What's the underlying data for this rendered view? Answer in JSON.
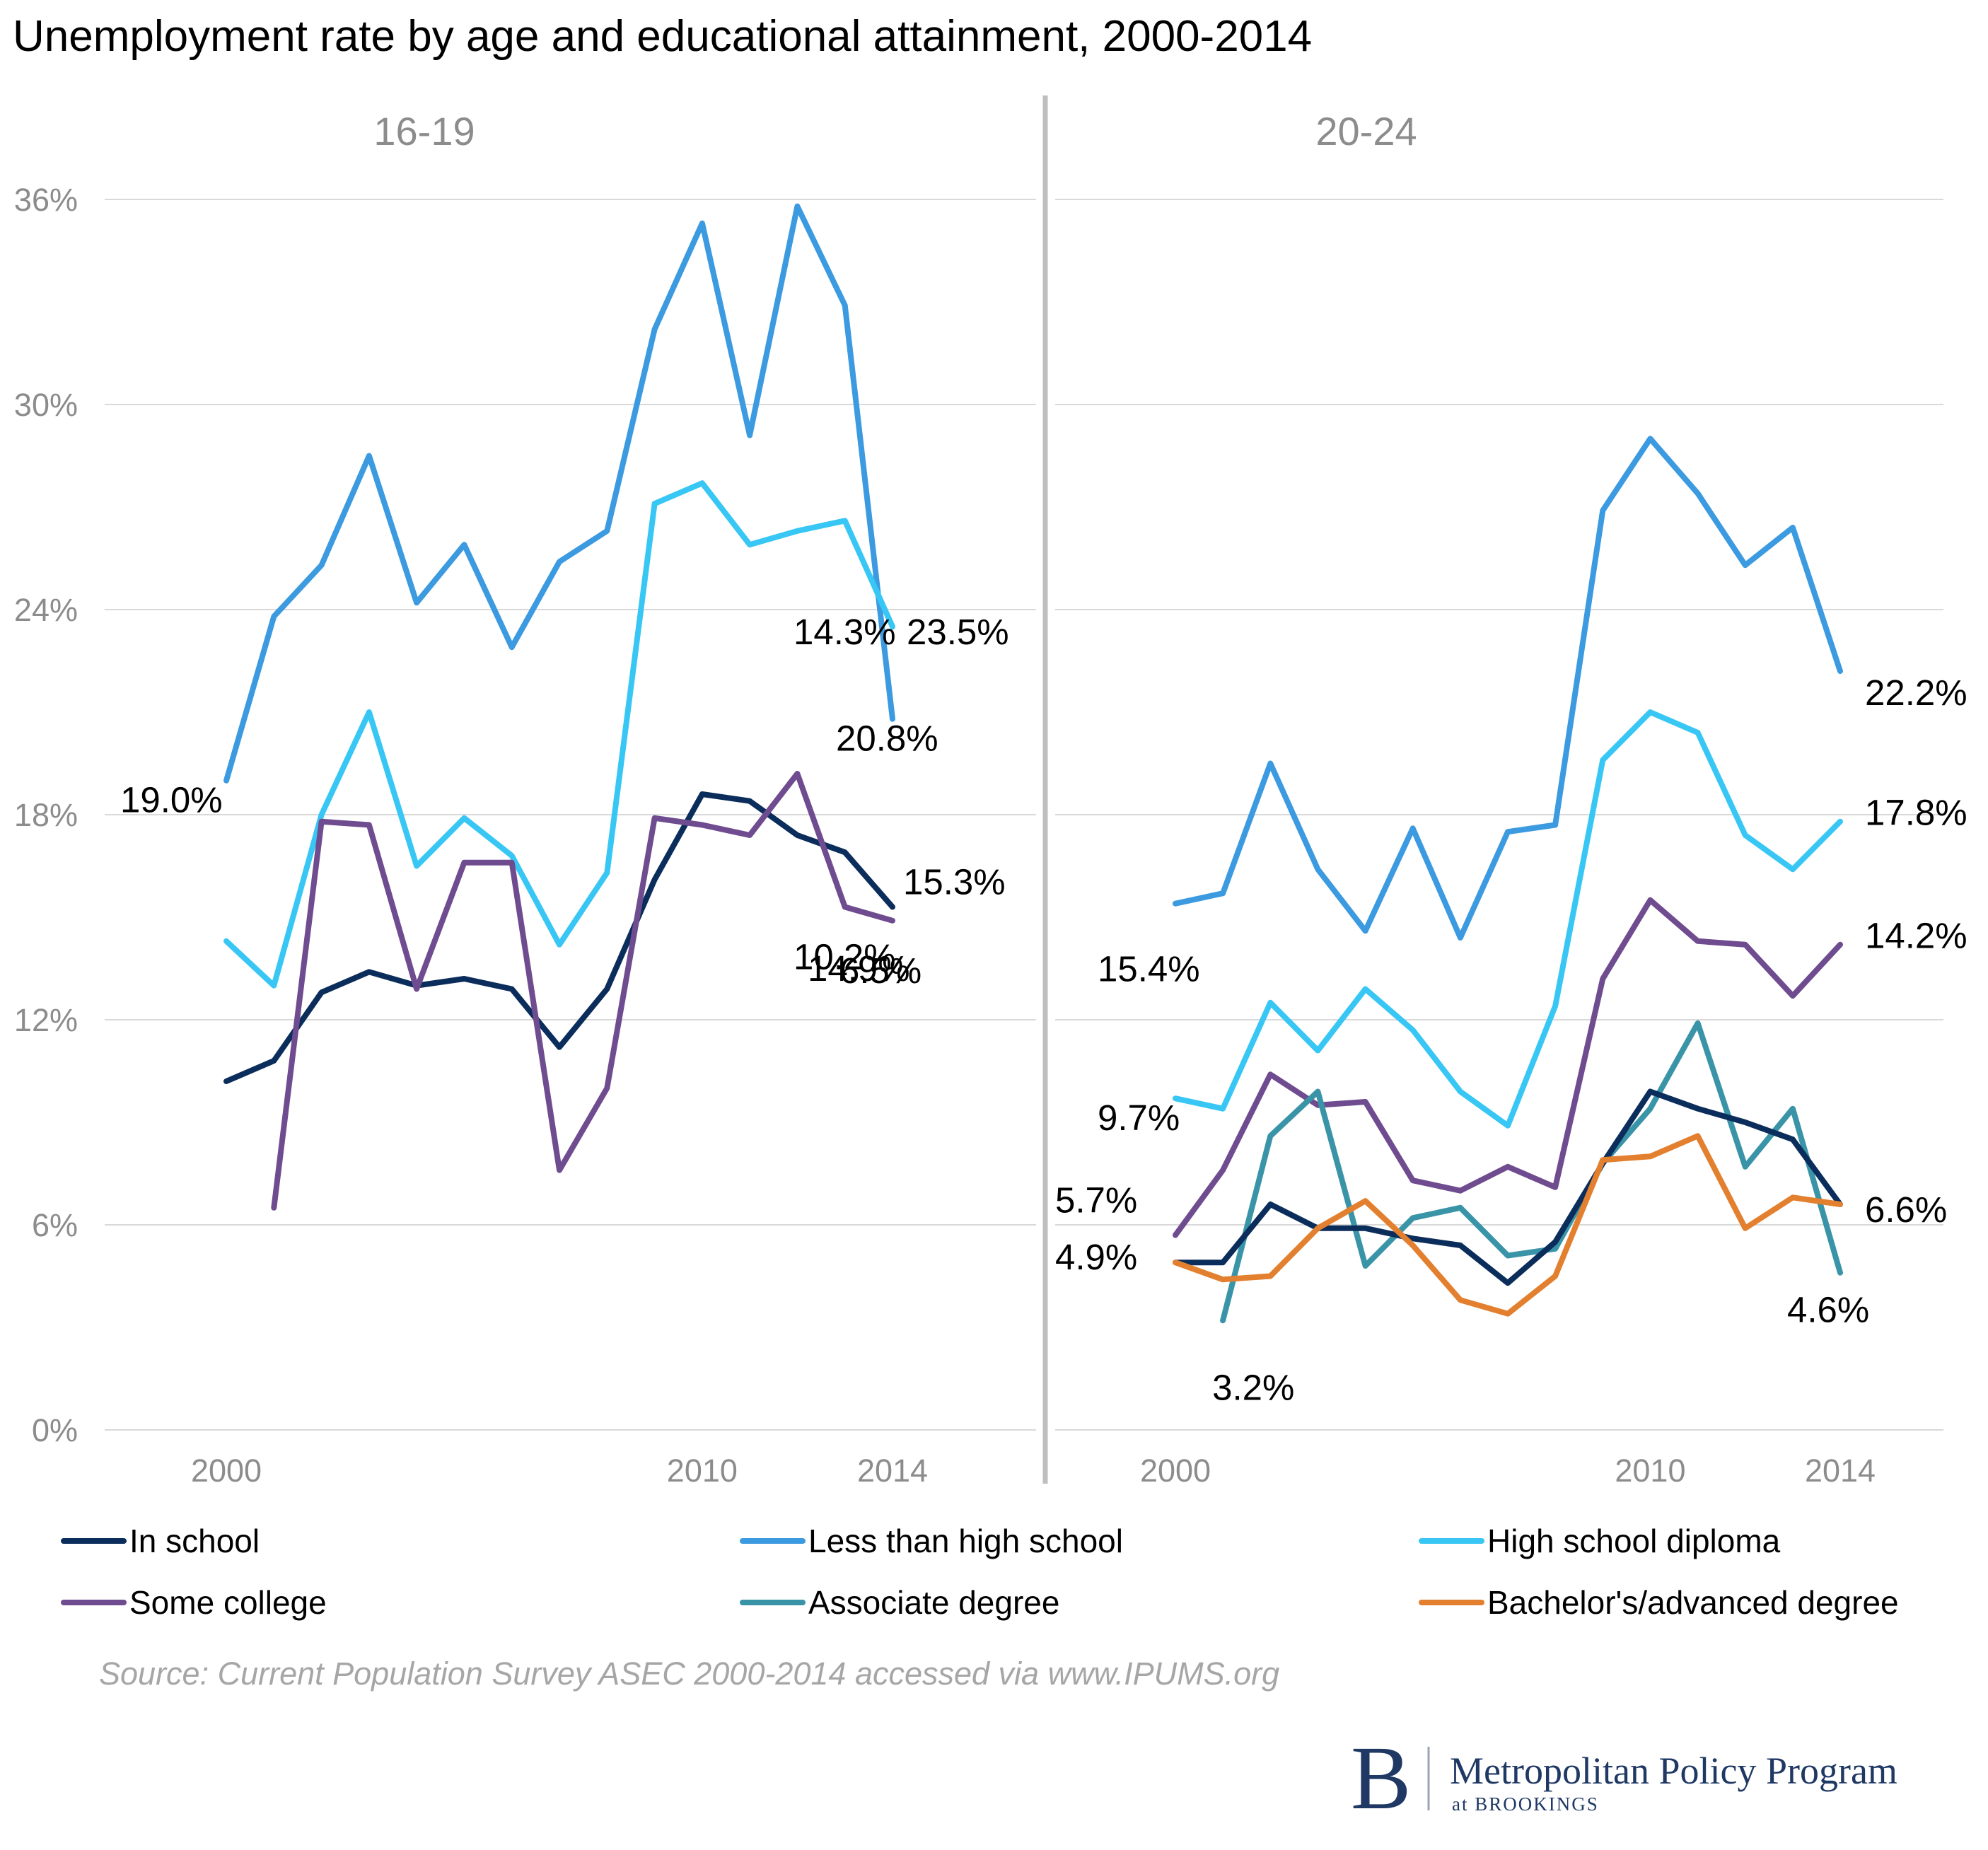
{
  "title": "Unemployment rate by age and educational attainment, 2000-2014",
  "source": "Source: Current Population Survey ASEC 2000-2014 accessed via www.IPUMS.org",
  "logo": {
    "letter": "B",
    "name": "Metropolitan Policy Program",
    "sub": "at BROOKINGS"
  },
  "chart_data": {
    "type": "line",
    "ylim": [
      0,
      36
    ],
    "yticks": [
      "0%",
      "6%",
      "12%",
      "18%",
      "24%",
      "30%",
      "36%"
    ],
    "xticks": [
      "2000",
      "2010",
      "2014"
    ],
    "panels": [
      {
        "title": "16-19",
        "series": [
          {
            "name": "Less than high school",
            "x": [
              2000,
              2001,
              2002,
              2003,
              2004,
              2005,
              2006,
              2007,
              2008,
              2009,
              2010,
              2011,
              2012,
              2013,
              2014
            ],
            "values": [
              19.0,
              23.8,
              25.3,
              28.5,
              24.2,
              25.9,
              22.9,
              25.4,
              26.3,
              32.2,
              35.3,
              29.1,
              35.8,
              32.9,
              20.8
            ]
          },
          {
            "name": "High school diploma",
            "x": [
              2000,
              2001,
              2002,
              2003,
              2004,
              2005,
              2006,
              2007,
              2008,
              2009,
              2010,
              2011,
              2012,
              2013,
              2014
            ],
            "values": [
              14.3,
              13.0,
              18.0,
              21.0,
              16.5,
              17.9,
              16.8,
              14.2,
              16.3,
              27.1,
              27.7,
              25.9,
              26.3,
              26.6,
              23.5
            ]
          },
          {
            "name": "In school",
            "x": [
              2000,
              2001,
              2002,
              2003,
              2004,
              2005,
              2006,
              2007,
              2008,
              2009,
              2010,
              2011,
              2012,
              2013,
              2014
            ],
            "values": [
              10.2,
              10.8,
              12.8,
              13.4,
              13.0,
              13.2,
              12.9,
              11.2,
              12.9,
              16.1,
              18.6,
              18.4,
              17.4,
              16.9,
              15.3
            ]
          },
          {
            "name": "Some college",
            "x": [
              2001,
              2002,
              2003,
              2004,
              2005,
              2006,
              2007,
              2008,
              2009,
              2010,
              2011,
              2012,
              2013,
              2014
            ],
            "values": [
              6.5,
              17.8,
              17.7,
              12.9,
              16.6,
              16.6,
              7.6,
              10.0,
              17.9,
              17.7,
              17.4,
              19.2,
              15.3,
              14.9
            ]
          }
        ],
        "labels": [
          {
            "text": "19.0%",
            "series": "Less than high school"
          },
          {
            "text": "20.8%",
            "series": "Less than high school"
          },
          {
            "text": "23.5%",
            "series": "High school diploma"
          },
          {
            "text": "14.3%",
            "series": "High school diploma"
          },
          {
            "text": "15.3%",
            "series": "In school"
          },
          {
            "text": "10.2%",
            "series": "In school"
          },
          {
            "text": "14.9%",
            "series": "Some college"
          },
          {
            "text": "6.5%",
            "series": "Some college"
          }
        ]
      },
      {
        "title": "20-24",
        "series": [
          {
            "name": "Less than high school",
            "x": [
              2000,
              2001,
              2002,
              2003,
              2004,
              2005,
              2006,
              2007,
              2008,
              2009,
              2010,
              2011,
              2012,
              2013,
              2014
            ],
            "values": [
              15.4,
              15.7,
              19.5,
              16.4,
              14.6,
              17.6,
              14.4,
              17.5,
              17.7,
              26.9,
              29.0,
              27.4,
              25.3,
              26.4,
              22.2
            ]
          },
          {
            "name": "High school diploma",
            "x": [
              2000,
              2001,
              2002,
              2003,
              2004,
              2005,
              2006,
              2007,
              2008,
              2009,
              2010,
              2011,
              2012,
              2013,
              2014
            ],
            "values": [
              9.7,
              9.4,
              12.5,
              11.1,
              12.9,
              11.7,
              9.9,
              8.9,
              12.4,
              19.6,
              21.0,
              20.4,
              17.4,
              16.4,
              17.8
            ]
          },
          {
            "name": "Some college",
            "x": [
              2000,
              2001,
              2002,
              2003,
              2004,
              2005,
              2006,
              2007,
              2008,
              2009,
              2010,
              2011,
              2012,
              2013,
              2014
            ],
            "values": [
              5.7,
              7.6,
              10.4,
              9.5,
              9.6,
              7.3,
              7.0,
              7.7,
              7.1,
              13.2,
              15.5,
              14.3,
              14.2,
              12.7,
              14.2
            ]
          },
          {
            "name": "Associate degree",
            "x": [
              2001,
              2002,
              2003,
              2004,
              2005,
              2006,
              2007,
              2008,
              2009,
              2010,
              2011,
              2012,
              2013,
              2014
            ],
            "values": [
              3.2,
              8.6,
              9.9,
              4.8,
              6.2,
              6.5,
              5.1,
              5.3,
              7.8,
              9.4,
              11.9,
              7.7,
              9.4,
              4.6
            ]
          },
          {
            "name": "In school",
            "x": [
              2000,
              2001,
              2002,
              2003,
              2004,
              2005,
              2006,
              2007,
              2008,
              2009,
              2010,
              2011,
              2012,
              2013,
              2014
            ],
            "values": [
              4.9,
              4.9,
              6.6,
              5.9,
              5.9,
              5.6,
              5.4,
              4.3,
              5.5,
              7.8,
              9.9,
              9.4,
              9.0,
              8.5,
              6.6
            ]
          },
          {
            "name": "Bachelor's/advanced degree",
            "x": [
              2000,
              2001,
              2002,
              2003,
              2004,
              2005,
              2006,
              2007,
              2008,
              2009,
              2010,
              2011,
              2012,
              2013,
              2014
            ],
            "values": [
              4.9,
              4.4,
              4.5,
              5.9,
              6.7,
              5.4,
              3.8,
              3.4,
              4.5,
              7.9,
              8.0,
              8.6,
              5.9,
              6.8,
              6.6
            ]
          }
        ],
        "labels": [
          {
            "text": "15.4%",
            "series": "Less than high school"
          },
          {
            "text": "22.2%",
            "series": "Less than high school"
          },
          {
            "text": "9.7%",
            "series": "High school diploma"
          },
          {
            "text": "17.8%",
            "series": "High school diploma"
          },
          {
            "text": "5.7%",
            "series": "Some college"
          },
          {
            "text": "14.2%",
            "series": "Some college"
          },
          {
            "text": "4.9%",
            "series": "In school"
          },
          {
            "text": "6.6%",
            "series": "In school"
          },
          {
            "text": "3.2%",
            "series": "Associate degree"
          },
          {
            "text": "4.6%",
            "series": "Associate degree"
          }
        ]
      }
    ],
    "legend": [
      {
        "name": "In school",
        "color": "#0b2d5b"
      },
      {
        "name": "Less than high school",
        "color": "#3c9ae0"
      },
      {
        "name": "High school diploma",
        "color": "#38c7f4"
      },
      {
        "name": "Some college",
        "color": "#6f4c8f"
      },
      {
        "name": "Associate degree",
        "color": "#3a94a8"
      },
      {
        "name": "Bachelor's/advanced degree",
        "color": "#e3802f"
      }
    ]
  }
}
